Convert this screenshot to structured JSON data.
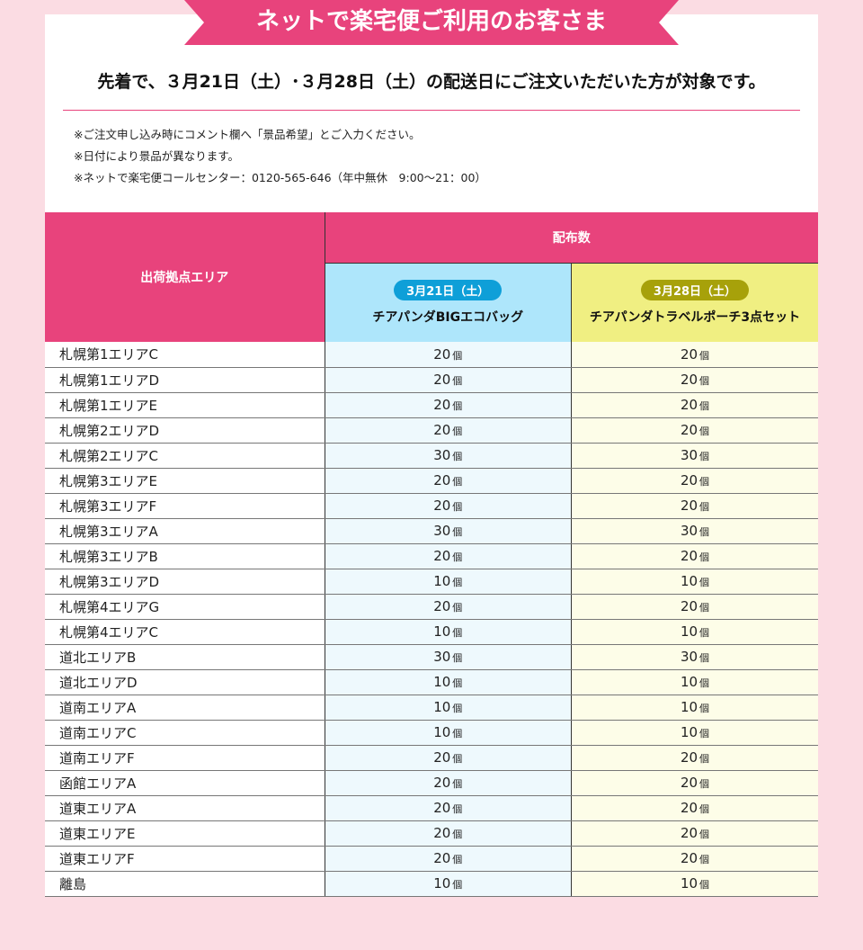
{
  "banner": "ネットで楽宅便ご利用のお客さま",
  "lead": "先着で、３月21日（土）･３月28日（土）の配送日にご注文いただいた方が対象です。",
  "notes": [
    "※ご注文申し込み時にコメント欄へ「景品希望」とご入力ください。",
    "※日付により景品が異なります。",
    "※ネットで楽宅便コールセンター：0120-565-646（年中無休　9:00〜21：00）"
  ],
  "table": {
    "area_header": "出荷拠点エリア",
    "dist_header": "配布数",
    "col1": {
      "date": "3月21日（土）",
      "item": "チアパンダBIGエコバッグ"
    },
    "col2": {
      "date": "3月28日（土）",
      "item": "チアパンダトラベルポーチ3点セット"
    },
    "unit": "個",
    "rows": [
      [
        "札幌第1エリアC",
        "20",
        "20"
      ],
      [
        "札幌第1エリアD",
        "20",
        "20"
      ],
      [
        "札幌第1エリアE",
        "20",
        "20"
      ],
      [
        "札幌第2エリアD",
        "20",
        "20"
      ],
      [
        "札幌第2エリアC",
        "30",
        "30"
      ],
      [
        "札幌第3エリアE",
        "20",
        "20"
      ],
      [
        "札幌第3エリアF",
        "20",
        "20"
      ],
      [
        "札幌第3エリアA",
        "30",
        "30"
      ],
      [
        "札幌第3エリアB",
        "20",
        "20"
      ],
      [
        "札幌第3エリアD",
        "10",
        "10"
      ],
      [
        "札幌第4エリアG",
        "20",
        "20"
      ],
      [
        "札幌第4エリアC",
        "10",
        "10"
      ],
      [
        "道北エリアB",
        "30",
        "30"
      ],
      [
        "道北エリアD",
        "10",
        "10"
      ],
      [
        "道南エリアA",
        "10",
        "10"
      ],
      [
        "道南エリアC",
        "10",
        "10"
      ],
      [
        "道南エリアF",
        "20",
        "20"
      ],
      [
        "函館エリアA",
        "20",
        "20"
      ],
      [
        "道東エリアA",
        "20",
        "20"
      ],
      [
        "道東エリアE",
        "20",
        "20"
      ],
      [
        "道東エリアF",
        "20",
        "20"
      ],
      [
        "離島",
        "10",
        "10"
      ]
    ]
  },
  "colors": {
    "accent": "#e8437c",
    "col1": "#aee6fb",
    "col2": "#f0ef82"
  }
}
